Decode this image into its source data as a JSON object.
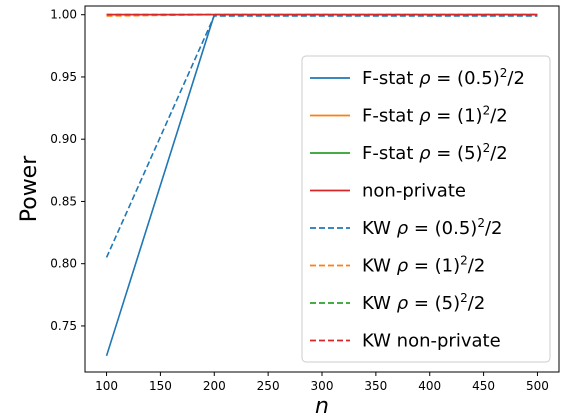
{
  "chart_data": {
    "type": "line",
    "xlabel": "n",
    "ylabel": "Power",
    "xlim": [
      80,
      520
    ],
    "ylim": [
      0.713,
      1.007
    ],
    "xticks": [
      100,
      150,
      200,
      250,
      300,
      350,
      400,
      450,
      500
    ],
    "yticks": [
      0.75,
      0.8,
      0.85,
      0.9,
      0.95,
      1.0
    ],
    "ytick_labels": [
      "0.75",
      "0.80",
      "0.85",
      "0.90",
      "0.95",
      "1.00"
    ],
    "grid": false,
    "legend_position": "lower-right",
    "series": [
      {
        "name": "F-stat ρ = (0.5)²/2",
        "color": "#1f77b4",
        "dash": "solid",
        "x": [
          100,
          200,
          300,
          400,
          500
        ],
        "y": [
          0.726,
          1.0,
          1.0,
          1.0,
          1.0
        ]
      },
      {
        "name": "F-stat ρ = (1)²/2",
        "color": "#ff7f0e",
        "dash": "solid",
        "x": [
          100,
          200,
          300,
          400,
          500
        ],
        "y": [
          1.0,
          1.0,
          1.0,
          1.0,
          1.0
        ]
      },
      {
        "name": "F-stat ρ = (5)²/2",
        "color": "#2ca02c",
        "dash": "solid",
        "x": [
          100,
          200,
          300,
          400,
          500
        ],
        "y": [
          1.0,
          1.0,
          1.0,
          1.0,
          1.0
        ]
      },
      {
        "name": "non-private",
        "color": "#d62728",
        "dash": "solid",
        "x": [
          100,
          200,
          300,
          400,
          500
        ],
        "y": [
          1.0,
          1.0,
          1.0,
          1.0,
          1.0
        ]
      },
      {
        "name": "KW ρ = (0.5)²/2",
        "color": "#1f77b4",
        "dash": "dashed",
        "x": [
          100,
          200,
          300,
          400,
          500
        ],
        "y": [
          0.805,
          0.999,
          0.999,
          0.999,
          0.999
        ]
      },
      {
        "name": "KW ρ = (1)²/2",
        "color": "#ff7f0e",
        "dash": "dashed",
        "x": [
          100,
          200,
          300,
          400,
          500
        ],
        "y": [
          0.999,
          1.0,
          1.0,
          1.0,
          1.0
        ]
      },
      {
        "name": "KW ρ = (5)²/2",
        "color": "#2ca02c",
        "dash": "dashed",
        "x": [
          100,
          200,
          300,
          400,
          500
        ],
        "y": [
          1.0,
          1.0,
          1.0,
          1.0,
          1.0
        ]
      },
      {
        "name": "KW non-private",
        "color": "#d62728",
        "dash": "dashed",
        "x": [
          100,
          200,
          300,
          400,
          500
        ],
        "y": [
          1.0,
          1.0,
          1.0,
          1.0,
          1.0
        ]
      }
    ],
    "legend": [
      {
        "prefix": "F-stat ",
        "rho": "(0.5)",
        "sup": "2",
        "suffix": "/2"
      },
      {
        "prefix": "F-stat ",
        "rho": "(1)",
        "sup": "2",
        "suffix": "/2"
      },
      {
        "prefix": "F-stat ",
        "rho": "(5)",
        "sup": "2",
        "suffix": "/2"
      },
      {
        "plain": "non-private"
      },
      {
        "prefix": "KW ",
        "rho": "(0.5)",
        "sup": "2",
        "suffix": "/2"
      },
      {
        "prefix": "KW ",
        "rho": "(1)",
        "sup": "2",
        "suffix": "/2"
      },
      {
        "prefix": "KW ",
        "rho": "(5)",
        "sup": "2",
        "suffix": "/2"
      },
      {
        "plain": "KW non-private"
      }
    ]
  }
}
